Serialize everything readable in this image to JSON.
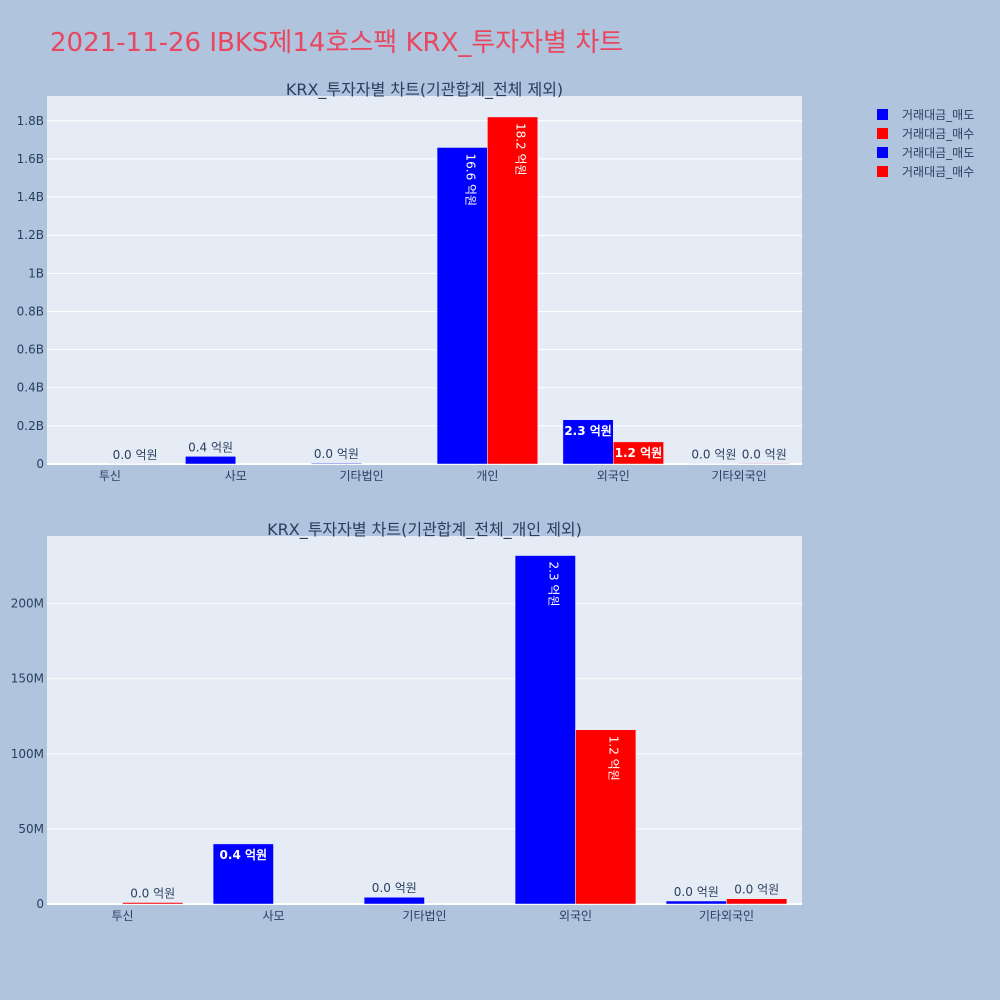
{
  "page_title": "2021-11-26 IBKS제14호스팩 KRX_투자자별 차트",
  "legend": [
    {
      "label": "거래대금_매도",
      "color": "#0000ff"
    },
    {
      "label": "거래대금_매수",
      "color": "#ff0000"
    },
    {
      "label": "거래대금_매도",
      "color": "#0000ff"
    },
    {
      "label": "거래대금_매수",
      "color": "#ff0000"
    }
  ],
  "chart_data": [
    {
      "type": "bar",
      "title": "KRX_투자자별 차트(기관합계_전체 제외)",
      "categories": [
        "투신",
        "사모",
        "기타법인",
        "개인",
        "외국인",
        "기타외국인"
      ],
      "ylim": [
        0,
        1930000000
      ],
      "yticks": [
        0,
        200000000,
        400000000,
        600000000,
        800000000,
        1000000000,
        1200000000,
        1400000000,
        1600000000,
        1800000000
      ],
      "ytick_labels": [
        "0",
        "0.2B",
        "0.4B",
        "0.6B",
        "0.8B",
        "1B",
        "1.2B",
        "1.4B",
        "1.6B",
        "1.8B"
      ],
      "series": [
        {
          "name": "거래대금_매도",
          "color": "#0000ff",
          "values": [
            0,
            40000000,
            4000000,
            1660000000,
            232000000,
            2000000
          ],
          "labels": [
            "",
            "0.4 억원",
            "0.0 억원",
            "16.6 억원",
            "2.3 억원",
            "0.0 억원"
          ]
        },
        {
          "name": "거래대금_매수",
          "color": "#ff0000",
          "values": [
            1000000,
            0,
            0,
            1820000000,
            116000000,
            3000000
          ],
          "labels": [
            "0.0 억원",
            "",
            "",
            "18.2 억원",
            "1.2 억원",
            "0.0 억원"
          ]
        }
      ]
    },
    {
      "type": "bar",
      "title": "KRX_투자자별 차트(기관합계_전체_개인 제외)",
      "categories": [
        "투신",
        "사모",
        "기타법인",
        "외국인",
        "기타외국인"
      ],
      "ylim": [
        0,
        245000000
      ],
      "yticks": [
        0,
        50000000,
        100000000,
        150000000,
        200000000
      ],
      "ytick_labels": [
        "0",
        "50M",
        "100M",
        "150M",
        "200M"
      ],
      "series": [
        {
          "name": "거래대금_매도",
          "color": "#0000ff",
          "values": [
            0,
            40000000,
            4500000,
            232000000,
            2000000
          ],
          "labels": [
            "",
            "0.4 억원",
            "0.0 억원",
            "2.3 억원",
            "0.0 억원"
          ]
        },
        {
          "name": "거래대금_매수",
          "color": "#ff0000",
          "values": [
            1000000,
            0,
            0,
            116000000,
            3500000
          ],
          "labels": [
            "0.0 억원",
            "",
            "",
            "1.2 억원",
            "0.0 억원"
          ]
        }
      ]
    }
  ]
}
